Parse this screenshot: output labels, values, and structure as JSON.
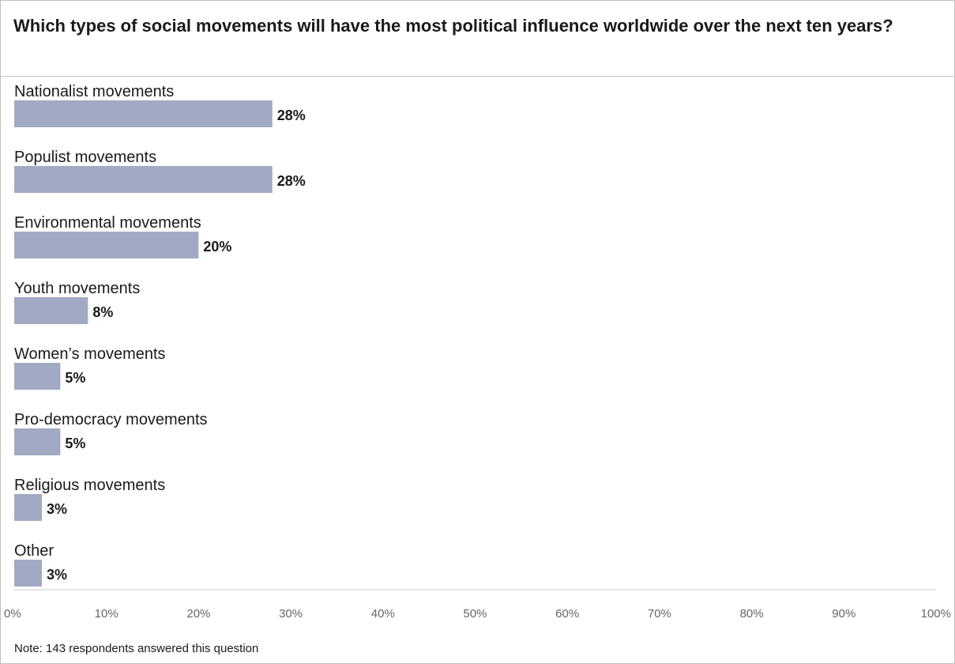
{
  "chart_data": {
    "type": "bar",
    "orientation": "horizontal",
    "title": "Which types of social movements will have the most political influence worldwide over the next ten years?",
    "categories": [
      "Nationalist movements",
      "Populist movements",
      "Environmental movements",
      "Youth movements",
      "Women’s movements",
      "Pro-democracy movements",
      "Religious movements",
      "Other"
    ],
    "values": [
      28,
      28,
      20,
      8,
      5,
      5,
      3,
      3
    ],
    "value_labels": [
      "28%",
      "28%",
      "20%",
      "8%",
      "5%",
      "5%",
      "3%",
      "3%"
    ],
    "xlim": [
      0,
      100
    ],
    "ticks": [
      0,
      10,
      20,
      30,
      40,
      50,
      60,
      70,
      80,
      90,
      100
    ],
    "tick_labels": [
      "0%",
      "10%",
      "20%",
      "30%",
      "40%",
      "50%",
      "60%",
      "70%",
      "80%",
      "90%",
      "100%"
    ],
    "grid": false,
    "bar_color": "#a2a9c3",
    "note": "Note: 143 respondents answered this question"
  }
}
